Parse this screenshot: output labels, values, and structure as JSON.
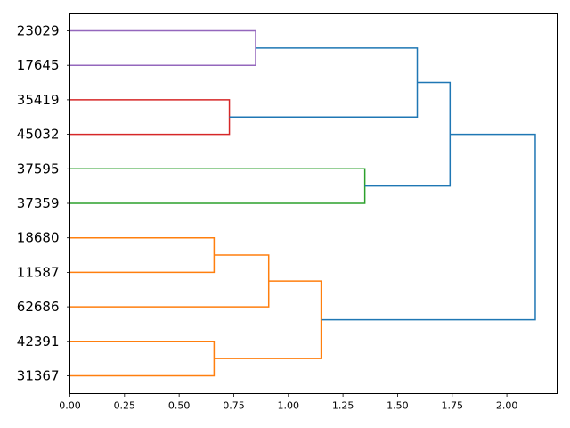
{
  "chart_data": {
    "type": "dendrogram",
    "orientation": "horizontal",
    "title": "",
    "xlabel": "",
    "ylabel": "",
    "xlim": [
      0,
      2.23
    ],
    "grid": false,
    "leaves": [
      "23029",
      "17645",
      "35419",
      "45032",
      "37595",
      "37359",
      "18680",
      "11587",
      "62686",
      "42391",
      "31367"
    ],
    "xticks": [
      "0.00",
      "0.25",
      "0.50",
      "0.75",
      "1.00",
      "1.25",
      "1.50",
      "1.75",
      "2.00"
    ],
    "merges": [
      {
        "left": "18680",
        "right": "11587",
        "height": 0.66,
        "color": "#ff7f0e"
      },
      {
        "left": "42391",
        "right": "31367",
        "height": 0.66,
        "color": "#ff7f0e"
      },
      {
        "left": "35419",
        "right": "45032",
        "height": 0.73,
        "color": "#d62728"
      },
      {
        "left": "23029",
        "right": "17645",
        "height": 0.85,
        "color": "#9467bd"
      },
      {
        "left": "(18680,11587)",
        "right": "62686",
        "height": 0.91,
        "color": "#ff7f0e"
      },
      {
        "left": "((18680,11587),62686)",
        "right": "(42391,31367)",
        "height": 1.15,
        "color": "#ff7f0e"
      },
      {
        "left": "37595",
        "right": "37359",
        "height": 1.35,
        "color": "#2ca02c"
      },
      {
        "left": "(23029,17645)",
        "right": "(35419,45032)",
        "height": 1.59,
        "color": "#1f77b4"
      },
      {
        "left": "((23029,17645),(35419,45032))",
        "right": "(37595,37359)",
        "height": 1.74,
        "color": "#1f77b4"
      },
      {
        "left": "(((23029,17645),(35419,45032)),(37595,37359))",
        "right": "(((18680,11587),62686),(42391,31367))",
        "height": 2.13,
        "color": "#1f77b4"
      }
    ]
  }
}
